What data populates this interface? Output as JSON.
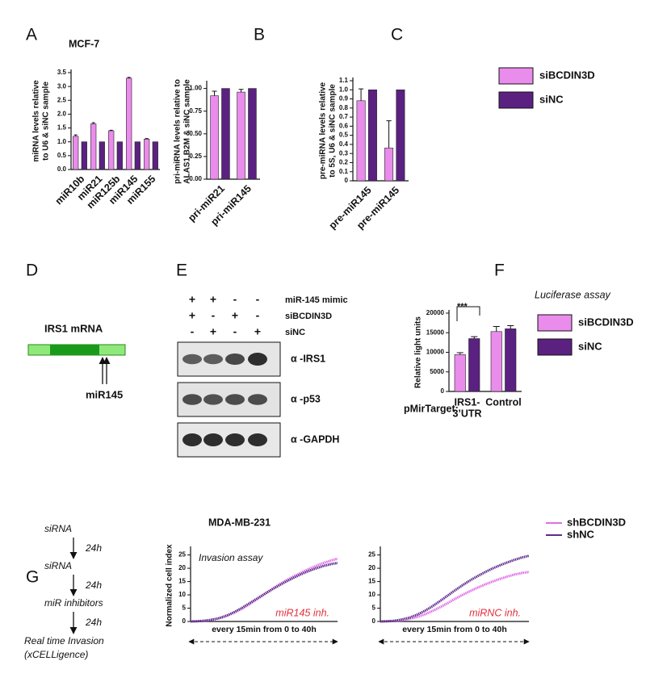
{
  "panels": [
    "A",
    "B",
    "C",
    "D",
    "E",
    "F",
    "G"
  ],
  "diagram": {
    "title": "IRS1 mRNA",
    "label": "miR145"
  },
  "blot": {
    "rows": [
      {
        "label": "miR-145 mimic",
        "signs": [
          "+",
          "+",
          "-",
          "-"
        ]
      },
      {
        "label": "siBCDIN3D",
        "signs": [
          "+",
          "-",
          "+",
          "-"
        ]
      },
      {
        "label": "siNC",
        "signs": [
          "-",
          "+",
          "-",
          "+"
        ]
      }
    ],
    "antibodies": [
      "α -IRS1",
      "α -p53",
      "α -GAPDH"
    ]
  },
  "protocol": {
    "steps": [
      "siRNA",
      "siRNA",
      "miR inhibitors",
      "Real time Invasion",
      "(xCELLigence)"
    ],
    "intervals": [
      "24h",
      "24h",
      "24h"
    ]
  },
  "chart_data": [
    {
      "type": "bar",
      "title": "MCF-7",
      "ylabel": [
        "miRNA levels relative",
        "to U6 & siNC sample"
      ],
      "categories": [
        "miR10b",
        "miR21",
        "miR125b",
        "miR145",
        "miR155"
      ],
      "series": [
        {
          "color": "#ea8ceb",
          "values": [
            1.2,
            1.65,
            1.4,
            3.3,
            1.1
          ],
          "errors": [
            0.05,
            0.04,
            0.02,
            0.03,
            0.02
          ]
        },
        {
          "color": "#5b2181",
          "values": [
            1,
            1,
            1,
            1,
            1
          ]
        }
      ],
      "ylim": [
        0,
        3.5
      ],
      "yticks": [
        {
          "value": 0,
          "label": "0.0"
        },
        0.5,
        {
          "value": 1,
          "label": "1.0"
        },
        1.5,
        {
          "value": 2,
          "label": "2.0"
        },
        2.5,
        {
          "value": 3,
          "label": "3.0"
        },
        3.5
      ]
    },
    {
      "type": "bar",
      "ylabel": [
        "pri-miRNA levels relative to",
        "ALAS1,B2M & siNC sample"
      ],
      "categories": [
        "pri-miR21",
        "pri-miR145"
      ],
      "series": [
        {
          "color": "#ea8ceb",
          "values": [
            0.92,
            0.96
          ],
          "errors": [
            0.05,
            0.03
          ]
        },
        {
          "color": "#5b2181",
          "values": [
            1,
            1
          ]
        }
      ],
      "ylim": [
        0,
        1.05
      ],
      "yticks": [
        {
          "value": 0,
          "label": "0.00"
        },
        {
          "value": 0.25,
          "label": "0.25"
        },
        {
          "value": 0.5,
          "label": "0.50"
        },
        {
          "value": 0.75,
          "label": "0.75"
        },
        {
          "value": 1,
          "label": "1.00"
        }
      ]
    },
    {
      "type": "bar",
      "ylabel": [
        "pre-miRNA levels relative",
        "to 5S, U6 & siNC sample"
      ],
      "categories": [
        "pre-miR145",
        "pre-miR145"
      ],
      "series": [
        {
          "name": "siBCDIN3D",
          "color": "#ea8ceb",
          "values": [
            0.88,
            0.36
          ],
          "errors": [
            0.13,
            0.3
          ]
        },
        {
          "name": "siNC",
          "color": "#5b2181",
          "values": [
            1,
            1
          ]
        }
      ],
      "ylim": [
        0,
        1.1
      ],
      "yticks": [
        0,
        0.1,
        0.2,
        0.3,
        0.4,
        0.5,
        0.6,
        0.7,
        0.8,
        0.9,
        {
          "value": 1,
          "label": "1.0"
        },
        1.1
      ],
      "legend": "right"
    },
    {
      "type": "bar",
      "title": "Luciferase assay",
      "ylabel": [
        "Relative light units"
      ],
      "xlabel": "pMirTarget:",
      "annotation": "***",
      "categories": [
        [
          "IRS1-",
          "3’UTR"
        ],
        [
          "Control"
        ]
      ],
      "series": [
        {
          "name": "siBCDIN3D",
          "color": "#ea8ceb",
          "values": [
            9400,
            15300
          ],
          "errors": [
            500,
            1300
          ]
        },
        {
          "name": "siNC",
          "color": "#5b2181",
          "values": [
            13500,
            16000
          ],
          "errors": [
            500,
            800
          ]
        }
      ],
      "ylim": [
        0,
        20000
      ],
      "yticks": [
        0,
        5000,
        10000,
        15000,
        20000
      ],
      "legend": "right"
    },
    {
      "type": "line",
      "title": "MDA-MB-231",
      "ylabel": [
        "Normalized cell index"
      ],
      "xlabel": "every 15min from 0 to 40h",
      "annotations": [
        "Invasion assay",
        "miR145 inh."
      ],
      "x": [
        0,
        2,
        4,
        6,
        8,
        10,
        12,
        14,
        16,
        18,
        20,
        22,
        24,
        26,
        28,
        30,
        32,
        34,
        36,
        38,
        40
      ],
      "xlim": [
        0,
        40
      ],
      "series": [
        {
          "color": "#e06ee6",
          "values": [
            0,
            0.1,
            0.3,
            0.7,
            1.3,
            2.2,
            3.4,
            4.8,
            6.5,
            8.3,
            10.2,
            12.0,
            13.8,
            15.4,
            16.9,
            18.3,
            19.6,
            20.8,
            21.9,
            22.8,
            23.6
          ]
        },
        {
          "color": "#5e2a8e",
          "values": [
            0,
            0.1,
            0.3,
            0.7,
            1.3,
            2.3,
            3.6,
            5.1,
            6.8,
            8.5,
            10.2,
            11.9,
            13.5,
            15.0,
            16.4,
            17.7,
            18.9,
            19.9,
            20.8,
            21.5,
            22.0
          ]
        }
      ],
      "ylim": [
        0,
        27
      ],
      "yticks": [
        0,
        5,
        10,
        15,
        20,
        25
      ]
    },
    {
      "type": "line",
      "xlabel": "every 15min from 0 to 40h",
      "annotations": [
        "miRNC inh."
      ],
      "x": [
        0,
        2,
        4,
        6,
        8,
        10,
        12,
        14,
        16,
        18,
        20,
        22,
        24,
        26,
        28,
        30,
        32,
        34,
        36,
        38,
        40
      ],
      "xlim": [
        0,
        40
      ],
      "series": [
        {
          "name": "shBCDIN3D",
          "color": "#e06ee6",
          "values": [
            0,
            0.1,
            0.2,
            0.5,
            1.0,
            1.7,
            2.7,
            3.9,
            5.3,
            6.8,
            8.4,
            9.9,
            11.3,
            12.6,
            13.8,
            14.9,
            15.9,
            16.8,
            17.6,
            18.2,
            18.6
          ]
        },
        {
          "name": "shNC",
          "color": "#5e2a8e",
          "values": [
            0,
            0.1,
            0.3,
            0.8,
            1.5,
            2.6,
            4.0,
            5.7,
            7.6,
            9.6,
            11.6,
            13.5,
            15.3,
            16.9,
            18.4,
            19.8,
            21.0,
            22.1,
            23.1,
            24.0,
            24.7
          ]
        }
      ],
      "ylim": [
        0,
        27
      ],
      "yticks": [
        0,
        5,
        10,
        15,
        20,
        25
      ],
      "legend": "right"
    }
  ]
}
